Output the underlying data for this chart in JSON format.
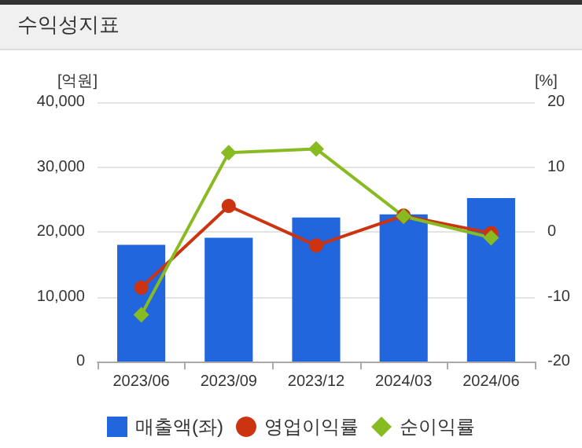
{
  "chart_data": {
    "type": "bar",
    "title": "수익성지표",
    "ylabel": "[억원]",
    "y2label": "[%]",
    "categories": [
      "2023/06",
      "2023/09",
      "2023/12",
      "2024/03",
      "2024/06"
    ],
    "series": [
      {
        "name": "매출액(좌)",
        "color": "#2266dd",
        "values": [
          18000,
          19100,
          22200,
          22700,
          25200
        ]
      },
      {
        "name": "영업이익률",
        "type": "line",
        "axis": "y2",
        "marker": "circle",
        "color": "#cc3311",
        "values": [
          -8.6,
          4.0,
          -2.1,
          2.5,
          -0.2
        ]
      },
      {
        "name": "순이익률",
        "type": "line",
        "axis": "y2",
        "marker": "diamond",
        "color": "#88bb22",
        "values": [
          -12.8,
          12.2,
          12.8,
          2.4,
          -0.9
        ]
      }
    ],
    "ylim": [
      0,
      40000
    ],
    "yticks": [
      0,
      {
        "value": 10000,
        "label": "10,000"
      },
      {
        "value": 20000,
        "label": "20,000"
      },
      {
        "value": 30000,
        "label": "30,000"
      },
      {
        "value": 40000,
        "label": "40,000"
      }
    ],
    "y2lim": [
      -20,
      20
    ],
    "y2ticks": [
      -20,
      -10,
      0,
      10,
      20
    ],
    "grid": "y",
    "legend": "bottom"
  }
}
